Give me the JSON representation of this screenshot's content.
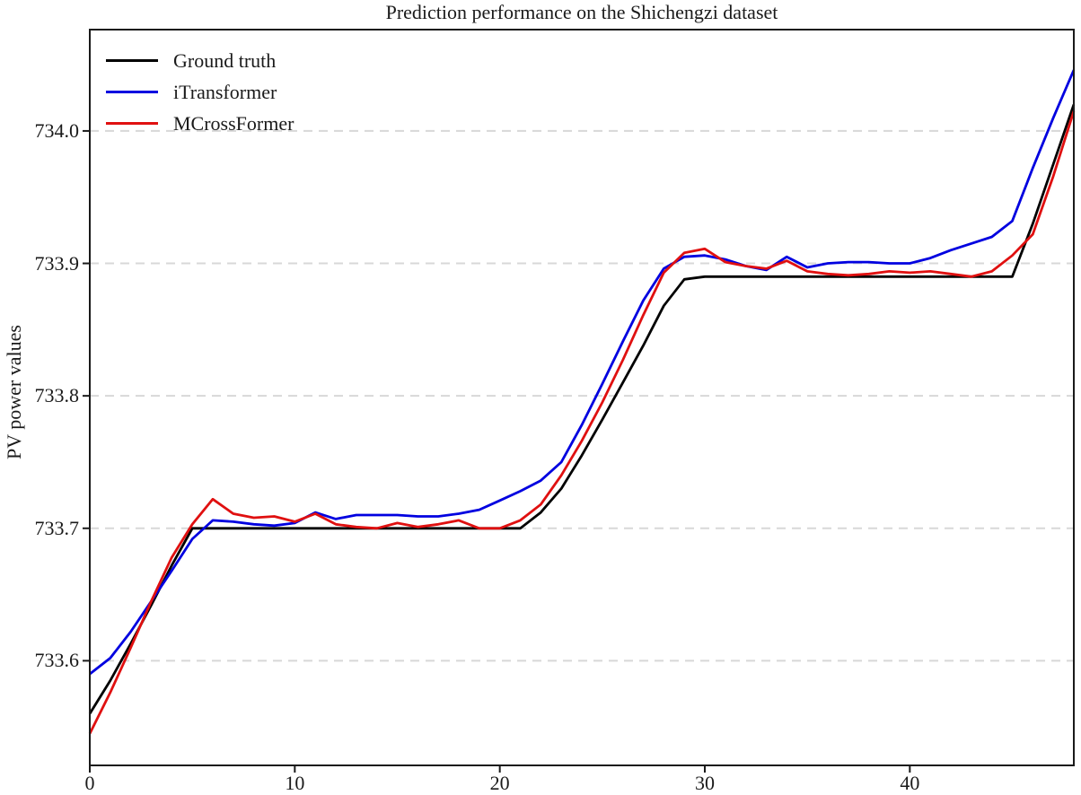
{
  "title": "Prediction performance on the Shichengzi dataset",
  "colors": {
    "ground_truth": "#000000",
    "itransformer": "#0000e0",
    "mcrossformer": "#e01010",
    "grid": "#d8d8d8",
    "axis": "#1a1a1a",
    "background": "#ffffff"
  },
  "legend": {
    "position": "upper left",
    "items": [
      {
        "label": "Ground truth",
        "color": "#000000"
      },
      {
        "label": "iTransformer",
        "color": "#0000e0"
      },
      {
        "label": "MCrossFormer",
        "color": "#e01010"
      }
    ]
  },
  "chart_data": {
    "type": "line",
    "title": "Prediction performance on the Shichengzi dataset",
    "xlabel": "",
    "ylabel": "PV power values",
    "xlim": [
      0,
      48
    ],
    "ylim": [
      733.521,
      734.0765
    ],
    "xticks": [
      0,
      10,
      20,
      30,
      40
    ],
    "xtick_labels": [
      "0",
      "10",
      "20",
      "30",
      "40"
    ],
    "yticks": [
      733.6,
      733.7,
      733.8,
      733.9,
      734.0
    ],
    "ytick_labels": [
      "733.6",
      "733.7",
      "733.8",
      "733.9",
      "734.0"
    ],
    "grid": "horizontal-dashed",
    "legend_position": "upper left",
    "x": [
      0,
      1,
      2,
      3,
      4,
      5,
      6,
      7,
      8,
      9,
      10,
      11,
      12,
      13,
      14,
      15,
      16,
      17,
      18,
      19,
      20,
      21,
      22,
      23,
      24,
      25,
      26,
      27,
      28,
      29,
      30,
      31,
      32,
      33,
      34,
      35,
      36,
      37,
      38,
      39,
      40,
      41,
      42,
      43,
      44,
      45,
      46,
      47,
      48
    ],
    "series": [
      {
        "name": "Ground truth",
        "color": "#000000",
        "values": [
          733.56,
          733.585,
          733.613,
          733.642,
          733.672,
          733.7,
          733.7,
          733.7,
          733.7,
          733.7,
          733.7,
          733.7,
          733.7,
          733.7,
          733.7,
          733.7,
          733.7,
          733.7,
          733.7,
          733.7,
          733.7,
          733.7,
          733.712,
          733.73,
          733.755,
          733.782,
          733.81,
          733.838,
          733.868,
          733.888,
          733.89,
          733.89,
          733.89,
          733.89,
          733.89,
          733.89,
          733.89,
          733.89,
          733.89,
          733.89,
          733.89,
          733.89,
          733.89,
          733.89,
          733.89,
          733.89,
          733.93,
          733.975,
          734.02
        ]
      },
      {
        "name": "iTransformer",
        "color": "#0000e0",
        "values": [
          733.59,
          733.602,
          733.622,
          733.645,
          733.668,
          733.692,
          733.706,
          733.705,
          733.703,
          733.702,
          733.704,
          733.712,
          733.707,
          733.71,
          733.71,
          733.71,
          733.709,
          733.709,
          733.711,
          733.714,
          733.721,
          733.728,
          733.736,
          733.75,
          733.778,
          733.809,
          733.841,
          733.872,
          733.896,
          733.905,
          733.906,
          733.903,
          733.898,
          733.895,
          733.905,
          733.897,
          733.9,
          733.901,
          733.901,
          733.9,
          733.9,
          733.904,
          733.91,
          733.915,
          733.92,
          733.932,
          733.972,
          734.01,
          734.046
        ]
      },
      {
        "name": "MCrossFormer",
        "color": "#e01010",
        "values": [
          733.545,
          733.576,
          733.61,
          733.645,
          733.678,
          733.703,
          733.722,
          733.711,
          733.708,
          733.709,
          733.705,
          733.711,
          733.703,
          733.701,
          733.7,
          733.704,
          733.701,
          733.703,
          733.706,
          733.7,
          733.7,
          733.706,
          733.718,
          733.74,
          733.766,
          733.795,
          733.827,
          733.861,
          733.893,
          733.908,
          733.911,
          733.901,
          733.898,
          733.896,
          733.902,
          733.894,
          733.892,
          733.891,
          733.892,
          733.894,
          733.893,
          733.894,
          733.892,
          733.89,
          733.894,
          733.906,
          733.922,
          733.966,
          734.015
        ]
      }
    ]
  }
}
